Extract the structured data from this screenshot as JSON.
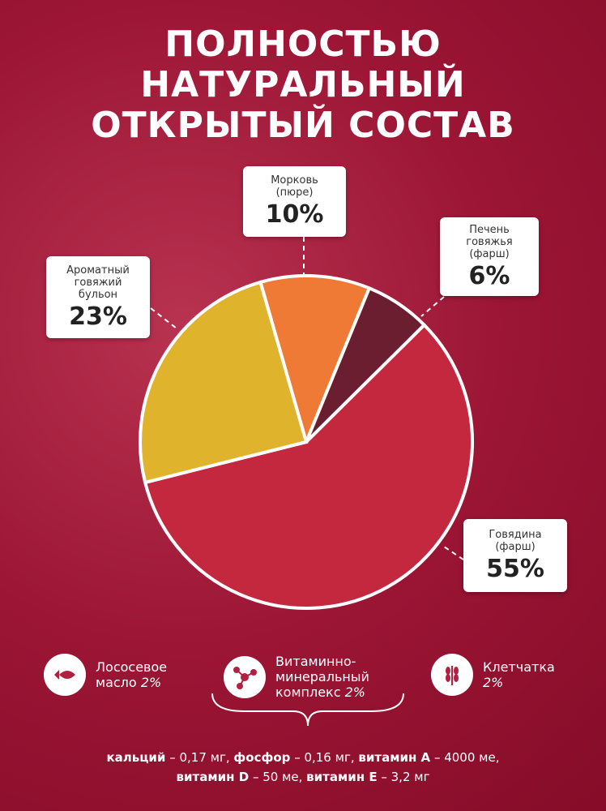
{
  "chart_data": {
    "type": "pie",
    "title": "ПОЛНОСТЬЮ\nНАТУРАЛЬНЫЙ\nОТКРЫТЫЙ СОСТАВ",
    "categories": [
      "Морковь\n(пюре)",
      "Печень\nговяжья\n(фарш)",
      "Говядина\n(фарш)",
      "Ароматный\nговяжий\nбульон"
    ],
    "values": [
      10,
      6,
      55,
      23
    ],
    "value_labels": [
      "10%",
      "6%",
      "55%",
      "23%"
    ],
    "colors": [
      "#ee7a36",
      "#6a1e30",
      "#c3283f",
      "#dfb42c"
    ]
  },
  "extras": [
    {
      "label": "Лососевое\nмасло",
      "value_label": "2%"
    },
    {
      "label": "Витаминно-\nминеральный\nкомплекс",
      "value_label": "2%"
    },
    {
      "label": "Клетчатка",
      "value_label": "2%"
    }
  ],
  "nutrients": [
    [
      {
        "name": "кальций",
        "amount": "– 0,17 мг,"
      },
      {
        "name": "фосфор",
        "amount": "– 0,16 мг,"
      },
      {
        "name": "витамин А",
        "amount": "– 4000 ме,"
      }
    ],
    [
      {
        "name": "витамин D",
        "amount": "– 50 ме,"
      },
      {
        "name": "витамин Е",
        "amount": "– 3,2 мг"
      }
    ]
  ]
}
